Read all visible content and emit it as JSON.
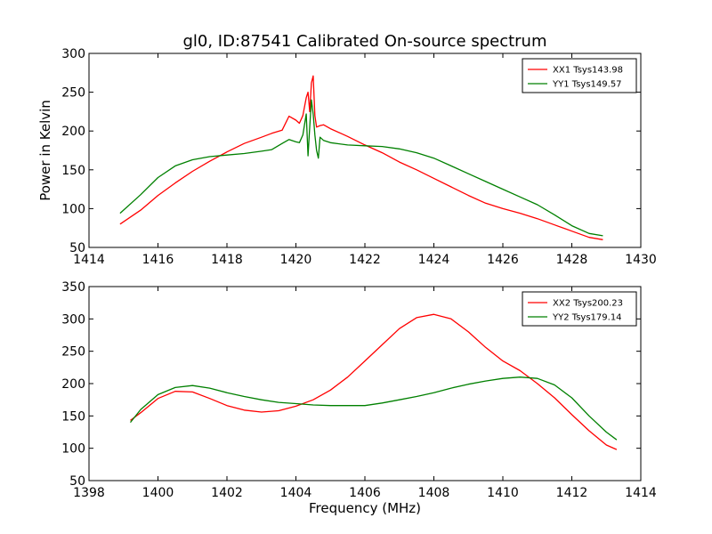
{
  "chart_data": [
    {
      "type": "line",
      "title": "gl0, ID:87541 Calibrated On-source spectrum",
      "xlabel": "",
      "ylabel": "Power in Kelvin",
      "xlim": [
        1414,
        1430
      ],
      "ylim": [
        50,
        300
      ],
      "x_ticks": [
        1414,
        1416,
        1418,
        1420,
        1422,
        1424,
        1426,
        1428,
        1430
      ],
      "y_ticks": [
        50,
        100,
        150,
        200,
        250,
        300
      ],
      "legend_position": "top-right",
      "series": [
        {
          "name": "XX1 Tsys143.98",
          "color": "#ff0000",
          "x": [
            1414.9,
            1415.5,
            1416.0,
            1416.5,
            1417.0,
            1417.5,
            1418.0,
            1418.5,
            1419.0,
            1419.3,
            1419.6,
            1419.8,
            1420.0,
            1420.1,
            1420.2,
            1420.3,
            1420.35,
            1420.4,
            1420.45,
            1420.5,
            1420.55,
            1420.6,
            1420.7,
            1420.8,
            1421.0,
            1421.5,
            1422.0,
            1422.5,
            1423.0,
            1423.5,
            1424.0,
            1424.5,
            1425.0,
            1425.5,
            1426.0,
            1426.5,
            1427.0,
            1427.5,
            1428.0,
            1428.5,
            1428.9
          ],
          "values": [
            80,
            98,
            117,
            133,
            148,
            161,
            173,
            184,
            192,
            197,
            201,
            219,
            214,
            210,
            220,
            243,
            250,
            225,
            262,
            271,
            220,
            205,
            207,
            208,
            203,
            193,
            182,
            172,
            160,
            150,
            139,
            128,
            117,
            107,
            100,
            94,
            87,
            79,
            71,
            63,
            60
          ]
        },
        {
          "name": "YY1 Tsys149.57",
          "color": "#008000",
          "x": [
            1414.9,
            1415.5,
            1416.0,
            1416.5,
            1417.0,
            1417.5,
            1418.0,
            1418.5,
            1419.0,
            1419.3,
            1419.6,
            1419.8,
            1420.0,
            1420.1,
            1420.2,
            1420.3,
            1420.35,
            1420.4,
            1420.45,
            1420.5,
            1420.55,
            1420.6,
            1420.65,
            1420.7,
            1420.8,
            1421.0,
            1421.5,
            1422.0,
            1422.5,
            1423.0,
            1423.5,
            1424.0,
            1424.5,
            1425.0,
            1425.5,
            1426.0,
            1426.5,
            1427.0,
            1427.5,
            1428.0,
            1428.5,
            1428.9
          ],
          "values": [
            94,
            118,
            140,
            155,
            163,
            167,
            169,
            171,
            174,
            176,
            184,
            189,
            186,
            185,
            195,
            222,
            168,
            205,
            240,
            222,
            195,
            175,
            165,
            192,
            188,
            185,
            182,
            181,
            180,
            177,
            172,
            165,
            155,
            145,
            135,
            125,
            115,
            105,
            92,
            78,
            68,
            65
          ]
        }
      ]
    },
    {
      "type": "line",
      "title": "",
      "xlabel": "Frequency (MHz)",
      "ylabel": "",
      "xlim": [
        1398,
        1414
      ],
      "ylim": [
        50,
        350
      ],
      "x_ticks": [
        1398,
        1400,
        1402,
        1404,
        1406,
        1408,
        1410,
        1412,
        1414
      ],
      "y_ticks": [
        50,
        100,
        150,
        200,
        250,
        300,
        350
      ],
      "legend_position": "top-right",
      "series": [
        {
          "name": "XX2 Tsys200.23",
          "color": "#ff0000",
          "x": [
            1399.2,
            1399.5,
            1400.0,
            1400.5,
            1401.0,
            1401.5,
            1402.0,
            1402.5,
            1403.0,
            1403.5,
            1404.0,
            1404.5,
            1405.0,
            1405.5,
            1406.0,
            1406.5,
            1407.0,
            1407.5,
            1408.0,
            1408.5,
            1409.0,
            1409.5,
            1410.0,
            1410.5,
            1411.0,
            1411.5,
            1412.0,
            1412.5,
            1413.0,
            1413.3
          ],
          "values": [
            143,
            155,
            177,
            188,
            187,
            177,
            166,
            159,
            156,
            158,
            165,
            175,
            190,
            210,
            235,
            260,
            285,
            302,
            307,
            300,
            280,
            256,
            235,
            220,
            200,
            178,
            152,
            127,
            105,
            98
          ]
        },
        {
          "name": "YY2 Tsys179.14",
          "color": "#008000",
          "x": [
            1399.2,
            1399.5,
            1400.0,
            1400.5,
            1401.0,
            1401.5,
            1402.0,
            1402.5,
            1403.0,
            1403.5,
            1404.0,
            1404.5,
            1405.0,
            1405.5,
            1406.0,
            1406.5,
            1407.0,
            1407.5,
            1408.0,
            1408.5,
            1409.0,
            1409.5,
            1410.0,
            1410.5,
            1411.0,
            1411.5,
            1412.0,
            1412.5,
            1413.0,
            1413.3
          ],
          "values": [
            140,
            160,
            183,
            194,
            197,
            193,
            186,
            180,
            175,
            171,
            169,
            167,
            166,
            166,
            166,
            170,
            175,
            180,
            186,
            193,
            199,
            204,
            208,
            210,
            208,
            198,
            178,
            150,
            125,
            113
          ]
        }
      ]
    }
  ]
}
